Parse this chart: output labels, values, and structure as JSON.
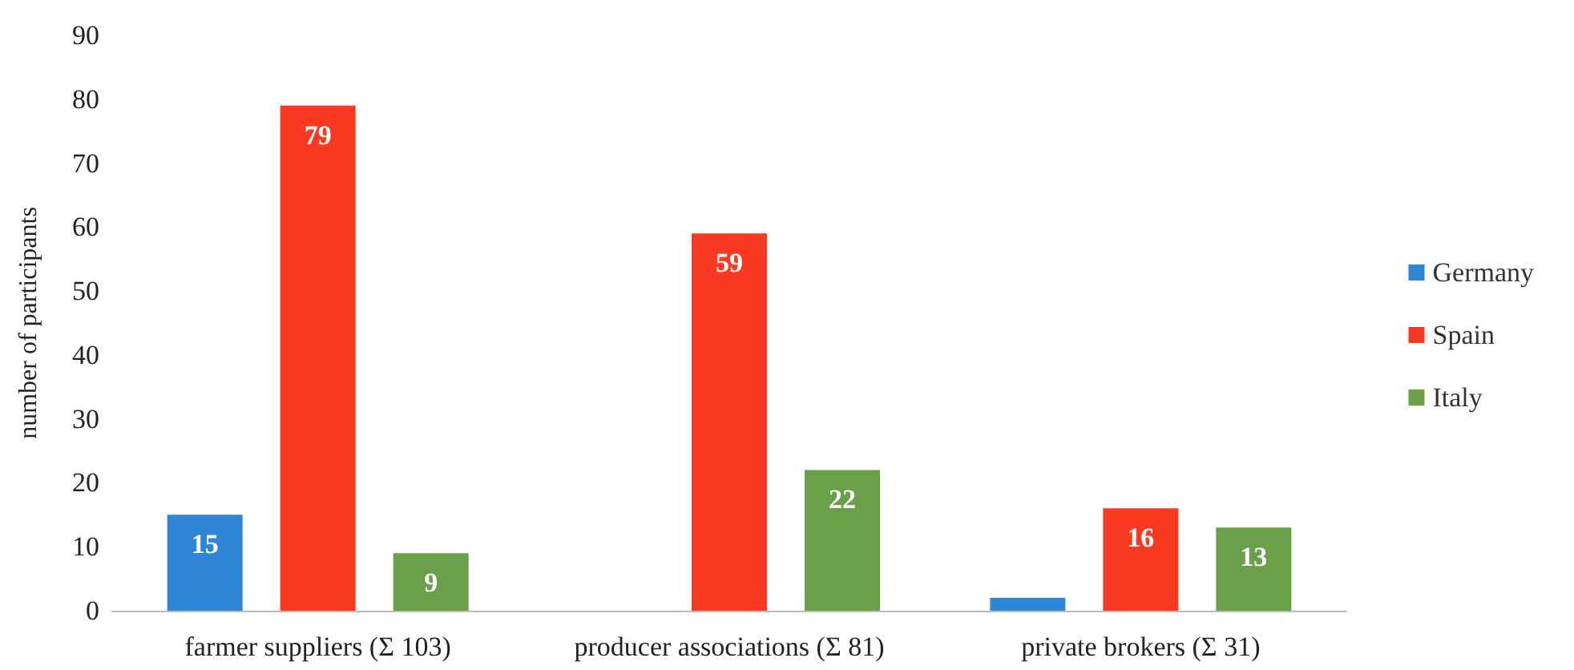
{
  "chart_data": {
    "type": "bar",
    "ylabel": "number of participants",
    "categories": [
      "farmer suppliers (Σ 103)",
      "producer associations (Σ 81)",
      "private brokers (Σ 31)"
    ],
    "series": [
      {
        "name": "Germany",
        "color": "#2e86d4",
        "values": [
          15,
          0,
          2
        ],
        "value_labels": [
          "15",
          null,
          null
        ]
      },
      {
        "name": "Spain",
        "color": "#f93a23",
        "values": [
          79,
          59,
          16
        ],
        "value_labels": [
          "79",
          "59",
          "16"
        ]
      },
      {
        "name": "Italy",
        "color": "#6aa04a",
        "values": [
          9,
          22,
          13
        ],
        "value_labels": [
          "9",
          "22",
          "13"
        ]
      }
    ],
    "ylim": [
      0,
      90
    ],
    "yticks": [
      0,
      10,
      20,
      30,
      40,
      50,
      60,
      70,
      80,
      90
    ],
    "grid": false,
    "legend": "right"
  }
}
